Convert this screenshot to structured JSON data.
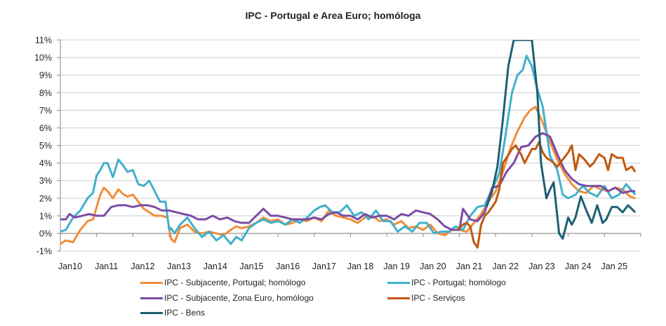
{
  "chart_data": {
    "type": "line",
    "title": "IPC - Portugal e Area Euro; homóloga",
    "xlabel": "",
    "ylabel": "",
    "ylim": [
      -1,
      11
    ],
    "xlim": [
      2010,
      2026
    ],
    "grid": true,
    "legend_position": "bottom",
    "y_ticks": [
      "-1%",
      "0%",
      "1%",
      "2%",
      "3%",
      "4%",
      "5%",
      "6%",
      "7%",
      "8%",
      "9%",
      "10%",
      "11%"
    ],
    "x_ticks": [
      "Jan10",
      "Jan11",
      "Jan12",
      "Jan13",
      "Jan14",
      "Jan15",
      "Jan16",
      "Jan17",
      "Jan 18",
      "Jan 19",
      "Jan 20",
      "Jan 21",
      "Jan 22",
      "Jan 23",
      "Jan 24",
      "Jan 25"
    ],
    "series": [
      {
        "name": "IPC - Subjacente, Portugal; homólogo",
        "color": "#F28C38",
        "x": [
          2010.0,
          2010.15,
          2010.35,
          2010.55,
          2010.75,
          2010.9,
          2011.0,
          2011.1,
          2011.2,
          2011.3,
          2011.45,
          2011.6,
          2011.75,
          2011.85,
          2012.0,
          2012.15,
          2012.3,
          2012.45,
          2012.6,
          2012.8,
          2012.95,
          2013.05,
          2013.15,
          2013.3,
          2013.5,
          2013.7,
          2013.9,
          2014.1,
          2014.3,
          2014.5,
          2014.7,
          2014.85,
          2015.0,
          2015.2,
          2015.4,
          2015.6,
          2015.8,
          2016.0,
          2016.2,
          2016.4,
          2016.6,
          2016.8,
          2017.0,
          2017.2,
          2017.4,
          2017.6,
          2017.8,
          2018.0,
          2018.2,
          2018.4,
          2018.6,
          2018.8,
          2019.0,
          2019.2,
          2019.4,
          2019.6,
          2019.8,
          2020.0,
          2020.2,
          2020.4,
          2020.6,
          2020.8,
          2021.0,
          2021.2,
          2021.4,
          2021.6,
          2021.8,
          2022.0,
          2022.2,
          2022.4,
          2022.6,
          2022.8,
          2022.95,
          2023.1,
          2023.3,
          2023.5,
          2023.7,
          2023.9,
          2024.1,
          2024.3,
          2024.5,
          2024.7,
          2024.9,
          2025.1,
          2025.3,
          2025.5,
          2025.7,
          2025.85
        ],
        "values": [
          -0.6,
          -0.4,
          -0.5,
          0.2,
          0.7,
          0.8,
          1.5,
          2.2,
          2.6,
          2.4,
          2.0,
          2.5,
          2.2,
          2.1,
          2.2,
          1.8,
          1.4,
          1.2,
          1.0,
          1.0,
          0.9,
          -0.3,
          -0.5,
          0.3,
          0.5,
          0.1,
          0.0,
          0.1,
          0.0,
          -0.1,
          0.2,
          0.4,
          0.3,
          0.4,
          0.6,
          0.9,
          0.7,
          0.8,
          0.5,
          0.6,
          0.8,
          0.7,
          0.9,
          0.7,
          1.3,
          1.0,
          0.9,
          0.8,
          0.6,
          0.9,
          1.0,
          0.7,
          0.8,
          0.5,
          0.7,
          0.3,
          0.4,
          0.2,
          0.5,
          0.0,
          -0.1,
          0.2,
          0.2,
          0.1,
          0.6,
          1.1,
          1.8,
          2.4,
          3.5,
          4.8,
          5.8,
          6.6,
          7.0,
          7.2,
          6.3,
          5.2,
          4.2,
          3.4,
          2.8,
          2.4,
          2.3,
          2.7,
          2.5,
          2.4,
          2.6,
          2.5,
          2.1,
          2.0
        ]
      },
      {
        "name": "IPC - Portugal; homólogo",
        "color": "#41B0CC",
        "x": [
          2010.0,
          2010.15,
          2010.35,
          2010.55,
          2010.75,
          2010.9,
          2011.0,
          2011.1,
          2011.2,
          2011.3,
          2011.45,
          2011.6,
          2011.75,
          2011.85,
          2012.0,
          2012.15,
          2012.3,
          2012.45,
          2012.6,
          2012.75,
          2012.9,
          2013.0,
          2013.05,
          2013.15,
          2013.3,
          2013.5,
          2013.7,
          2013.9,
          2014.1,
          2014.3,
          2014.5,
          2014.7,
          2014.85,
          2015.0,
          2015.2,
          2015.4,
          2015.6,
          2015.8,
          2016.0,
          2016.2,
          2016.4,
          2016.6,
          2016.8,
          2017.0,
          2017.15,
          2017.3,
          2017.5,
          2017.7,
          2017.9,
          2018.1,
          2018.3,
          2018.5,
          2018.7,
          2018.9,
          2019.1,
          2019.3,
          2019.5,
          2019.7,
          2019.9,
          2020.1,
          2020.3,
          2020.5,
          2020.7,
          2020.9,
          2021.1,
          2021.3,
          2021.5,
          2021.7,
          2021.9,
          2022.1,
          2022.25,
          2022.45,
          2022.6,
          2022.75,
          2022.85,
          2023.0,
          2023.15,
          2023.3,
          2023.5,
          2023.7,
          2023.85,
          2024.0,
          2024.2,
          2024.4,
          2024.6,
          2024.8,
          2025.0,
          2025.2,
          2025.4,
          2025.6,
          2025.85
        ],
        "values": [
          0.1,
          0.2,
          0.9,
          1.3,
          2.0,
          2.3,
          3.3,
          3.6,
          4.0,
          4.0,
          3.2,
          4.2,
          3.8,
          3.5,
          3.6,
          2.8,
          2.7,
          3.0,
          2.4,
          1.8,
          1.8,
          0.2,
          0.3,
          0.0,
          0.5,
          0.9,
          0.3,
          -0.2,
          0.1,
          -0.4,
          -0.1,
          -0.6,
          -0.2,
          -0.4,
          0.3,
          0.6,
          0.8,
          0.6,
          0.7,
          0.5,
          0.8,
          0.6,
          0.9,
          1.3,
          1.5,
          1.6,
          1.2,
          1.2,
          1.6,
          1.0,
          1.2,
          0.8,
          1.3,
          0.7,
          0.7,
          0.1,
          0.4,
          0.1,
          0.6,
          0.6,
          0.0,
          0.1,
          0.1,
          0.4,
          0.2,
          1.0,
          1.5,
          1.6,
          2.5,
          3.4,
          5.3,
          8.0,
          9.0,
          9.3,
          10.1,
          9.5,
          8.2,
          7.2,
          4.4,
          3.6,
          2.2,
          2.0,
          2.2,
          2.7,
          2.3,
          2.1,
          2.7,
          2.0,
          2.2,
          2.8,
          2.2
        ]
      },
      {
        "name": "IPC - Subjacente, Zona Euro, homólogo",
        "color": "#7B4BA6",
        "x": [
          2010.0,
          2010.15,
          2010.25,
          2010.4,
          2010.6,
          2010.8,
          2011.0,
          2011.2,
          2011.4,
          2011.6,
          2011.8,
          2012.0,
          2012.2,
          2012.4,
          2012.6,
          2012.8,
          2013.0,
          2013.2,
          2013.4,
          2013.6,
          2013.8,
          2014.0,
          2014.2,
          2014.4,
          2014.6,
          2014.8,
          2015.0,
          2015.2,
          2015.4,
          2015.6,
          2015.8,
          2016.0,
          2016.2,
          2016.4,
          2016.6,
          2016.8,
          2017.0,
          2017.2,
          2017.4,
          2017.6,
          2017.8,
          2018.0,
          2018.2,
          2018.4,
          2018.6,
          2018.8,
          2019.0,
          2019.2,
          2019.4,
          2019.6,
          2019.8,
          2020.0,
          2020.2,
          2020.4,
          2020.6,
          2020.8,
          2021.0,
          2021.1,
          2021.3,
          2021.5,
          2021.7,
          2021.9,
          2022.1,
          2022.3,
          2022.5,
          2022.7,
          2022.9,
          2023.1,
          2023.3,
          2023.5,
          2023.7,
          2023.9,
          2024.1,
          2024.3,
          2024.5,
          2024.7,
          2024.9,
          2025.1,
          2025.3,
          2025.5,
          2025.7,
          2025.85
        ],
        "values": [
          0.8,
          0.8,
          1.1,
          0.9,
          1.0,
          1.1,
          1.0,
          1.0,
          1.5,
          1.6,
          1.6,
          1.5,
          1.6,
          1.6,
          1.5,
          1.3,
          1.3,
          1.2,
          1.1,
          1.0,
          0.8,
          0.8,
          1.0,
          0.8,
          0.9,
          0.7,
          0.6,
          0.6,
          1.0,
          1.4,
          1.0,
          1.0,
          0.9,
          0.8,
          0.8,
          0.8,
          0.9,
          0.8,
          1.1,
          1.2,
          1.0,
          1.0,
          0.8,
          1.1,
          0.9,
          1.0,
          1.0,
          0.8,
          1.1,
          1.0,
          1.3,
          1.2,
          1.1,
          0.8,
          0.4,
          0.2,
          0.2,
          1.4,
          0.8,
          0.7,
          1.2,
          2.6,
          2.7,
          3.5,
          4.0,
          4.9,
          5.0,
          5.5,
          5.7,
          5.5,
          4.5,
          3.6,
          3.1,
          2.8,
          2.7,
          2.7,
          2.7,
          2.4,
          2.6,
          2.3,
          2.4,
          2.4
        ]
      },
      {
        "name": "IPC - Serviços",
        "color": "#C0580E",
        "x": [
          2020.95,
          2021.1,
          2021.2,
          2021.3,
          2021.4,
          2021.5,
          2021.6,
          2021.7,
          2021.8,
          2021.9,
          2022.0,
          2022.1,
          2022.2,
          2022.3,
          2022.45,
          2022.55,
          2022.7,
          2022.8,
          2022.9,
          2023.0,
          2023.1,
          2023.2,
          2023.3,
          2023.4,
          2023.55,
          2023.7,
          2023.85,
          2024.0,
          2024.1,
          2024.2,
          2024.3,
          2024.45,
          2024.6,
          2024.7,
          2024.85,
          2025.0,
          2025.1,
          2025.2,
          2025.35,
          2025.5,
          2025.6,
          2025.75,
          2025.85
        ],
        "values": [
          0.2,
          0.5,
          0.6,
          0.4,
          -0.5,
          -0.8,
          0.5,
          1.0,
          1.2,
          1.5,
          1.8,
          2.5,
          4.0,
          4.3,
          4.8,
          5.0,
          4.5,
          4.0,
          4.4,
          4.8,
          4.8,
          5.2,
          4.6,
          4.3,
          4.1,
          3.8,
          4.2,
          4.6,
          5.0,
          3.6,
          4.5,
          4.2,
          3.8,
          4.0,
          4.5,
          4.3,
          3.6,
          4.5,
          4.3,
          4.3,
          3.6,
          3.8,
          3.5
        ]
      },
      {
        "name": "IPC - Bens",
        "color": "#1E5F74",
        "x": [
          2021.75,
          2021.9,
          2022.05,
          2022.2,
          2022.35,
          2022.5,
          2022.65,
          2022.75,
          2023.0,
          2023.15,
          2023.25,
          2023.4,
          2023.5,
          2023.6,
          2023.75,
          2023.85,
          2024.0,
          2024.1,
          2024.2,
          2024.35,
          2024.5,
          2024.65,
          2024.8,
          2024.95,
          2025.05,
          2025.2,
          2025.35,
          2025.5,
          2025.65,
          2025.85
        ],
        "values": [
          1.5,
          2.4,
          3.8,
          6.5,
          9.5,
          11.0,
          11.0,
          11.0,
          11.0,
          8.0,
          4.0,
          2.0,
          2.5,
          2.9,
          0.0,
          -0.3,
          0.9,
          0.5,
          0.9,
          2.1,
          1.3,
          0.6,
          1.6,
          0.6,
          0.8,
          1.5,
          1.5,
          1.2,
          1.6,
          1.2
        ]
      }
    ]
  }
}
